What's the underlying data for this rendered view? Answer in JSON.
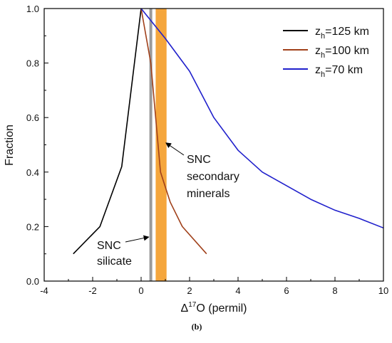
{
  "chart_data": {
    "type": "line",
    "xlabel_prefix": "Δ",
    "xlabel_sup": "17",
    "xlabel_suffix": "O (permil)",
    "ylabel": "Fraction",
    "xlim": [
      -4,
      10
    ],
    "ylim": [
      0.0,
      1.0
    ],
    "xticks": [
      -4,
      -2,
      0,
      2,
      4,
      6,
      8,
      10
    ],
    "yticks": [
      0.0,
      0.2,
      0.4,
      0.6,
      0.8,
      1.0
    ],
    "xtick_labels": [
      "-4",
      "-2",
      "0",
      "2",
      "4",
      "6",
      "8",
      "10"
    ],
    "ytick_labels": [
      "0.0",
      "0.2",
      "0.4",
      "0.6",
      "0.8",
      "1.0"
    ],
    "caption": "(b)",
    "legend_position": "top-right",
    "series": [
      {
        "legend_main": "z",
        "legend_sub": "h",
        "legend_rest": "=125 km",
        "color": "#000000",
        "points": [
          [
            -2.8,
            0.1
          ],
          [
            -1.7,
            0.2
          ],
          [
            -0.8,
            0.42
          ],
          [
            0.0,
            1.0
          ]
        ]
      },
      {
        "legend_main": "z",
        "legend_sub": "h",
        "legend_rest": "=100 km",
        "color": "#a0401a",
        "points": [
          [
            0.0,
            1.0
          ],
          [
            0.4,
            0.8
          ],
          [
            0.8,
            0.4
          ],
          [
            1.2,
            0.29
          ],
          [
            1.7,
            0.2
          ],
          [
            2.7,
            0.1
          ]
        ]
      },
      {
        "legend_main": "z",
        "legend_sub": "h",
        "legend_rest": "=70 km",
        "color": "#2020cc",
        "points": [
          [
            0.0,
            1.0
          ],
          [
            1.0,
            0.89
          ],
          [
            2.0,
            0.77
          ],
          [
            3.0,
            0.6
          ],
          [
            4.0,
            0.48
          ],
          [
            5.0,
            0.4
          ],
          [
            6.0,
            0.35
          ],
          [
            7.0,
            0.3
          ],
          [
            8.0,
            0.26
          ],
          [
            9.0,
            0.23
          ],
          [
            10.0,
            0.195
          ]
        ]
      }
    ],
    "bands": [
      {
        "name": "SNC secondary minerals",
        "x0": 0.6,
        "x1": 1.05,
        "color": "#f5a63c"
      }
    ],
    "vlines": [
      {
        "name": "SNC silicate",
        "x": 0.4,
        "color": "#9a9a9a"
      }
    ],
    "annotations": [
      {
        "lines": [
          "SNC",
          "secondary",
          "minerals"
        ],
        "arrow_to": [
          0.85,
          0.52
        ]
      },
      {
        "lines": [
          "SNC",
          "silicate"
        ],
        "arrow_to": [
          0.4,
          0.18
        ]
      }
    ]
  }
}
